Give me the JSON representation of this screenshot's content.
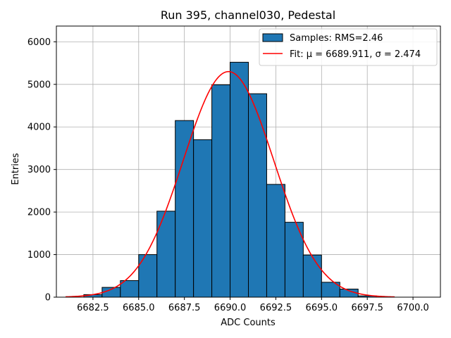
{
  "chart_data": {
    "type": "bar",
    "title": "Run 395, channel030, Pedestal",
    "xlabel": "ADC Counts",
    "ylabel": "Entries",
    "xlim": [
      6680.5,
      6701.5
    ],
    "ylim": [
      0,
      6370
    ],
    "xticks": [
      6682.5,
      6685.0,
      6687.5,
      6690.0,
      6692.5,
      6695.0,
      6697.5,
      6700.0
    ],
    "xtick_labels": [
      "6682.5",
      "6685.0",
      "6687.5",
      "6690.0",
      "6692.5",
      "6695.0",
      "6697.5",
      "6700.0"
    ],
    "yticks": [
      0,
      1000,
      2000,
      3000,
      4000,
      5000,
      6000
    ],
    "ytick_labels": [
      "0",
      "1000",
      "2000",
      "3000",
      "4000",
      "5000",
      "6000"
    ],
    "grid": true,
    "legend_position": "top-right",
    "bins": [
      {
        "left": 6682,
        "right": 6683,
        "value": 60
      },
      {
        "left": 6683,
        "right": 6684,
        "value": 230
      },
      {
        "left": 6684,
        "right": 6685,
        "value": 390
      },
      {
        "left": 6685,
        "right": 6686,
        "value": 1000
      },
      {
        "left": 6686,
        "right": 6687,
        "value": 2020
      },
      {
        "left": 6687,
        "right": 6688,
        "value": 4150
      },
      {
        "left": 6688,
        "right": 6689,
        "value": 3700
      },
      {
        "left": 6689,
        "right": 6690,
        "value": 4990
      },
      {
        "left": 6690,
        "right": 6691,
        "value": 5520
      },
      {
        "left": 6691,
        "right": 6692,
        "value": 4780
      },
      {
        "left": 6692,
        "right": 6693,
        "value": 2650
      },
      {
        "left": 6693,
        "right": 6694,
        "value": 1760
      },
      {
        "left": 6694,
        "right": 6695,
        "value": 990
      },
      {
        "left": 6695,
        "right": 6696,
        "value": 350
      },
      {
        "left": 6696,
        "right": 6697,
        "value": 190
      },
      {
        "left": 6697,
        "right": 6698,
        "value": 30
      }
    ],
    "series": [
      {
        "name": "Samples: RMS=2.46",
        "kind": "histogram",
        "color": "#1f77b4",
        "edge_color": "#000000"
      },
      {
        "name": "Fit: μ = 6689.911, σ = 2.474",
        "kind": "line",
        "color": "#ff0000",
        "model": "gaussian",
        "mu": 6689.911,
        "sigma": 2.474,
        "amplitude": 5300,
        "x_range": [
          6681,
          6699
        ]
      }
    ]
  }
}
